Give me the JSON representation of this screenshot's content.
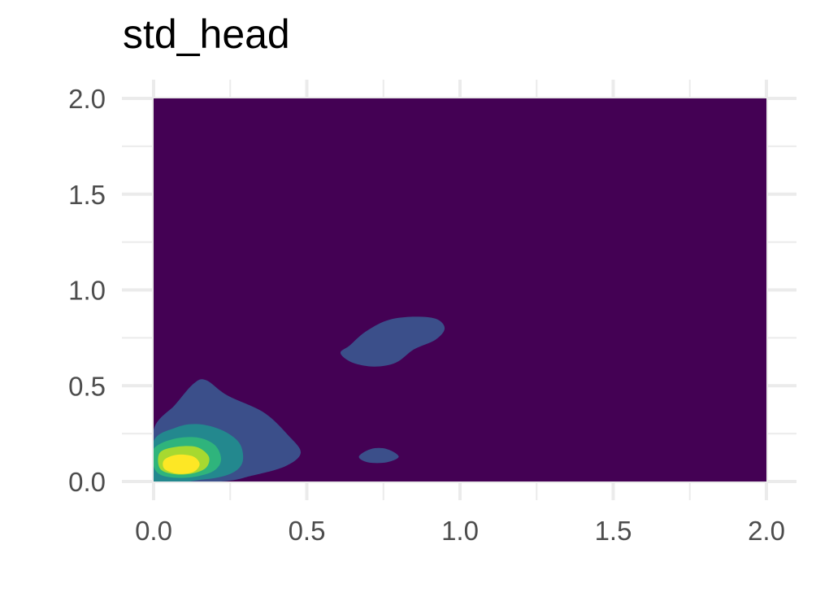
{
  "chart_data": {
    "type": "contour",
    "title": "std_head",
    "xlabel": "",
    "ylabel": "",
    "xlim": [
      0,
      2
    ],
    "ylim": [
      0,
      2
    ],
    "x_ticks": [
      "0.0",
      "0.5",
      "1.0",
      "1.5",
      "2.0"
    ],
    "y_ticks": [
      "0.0",
      "0.5",
      "1.0",
      "1.5",
      "2.0"
    ],
    "grid": true,
    "legend": "none",
    "density_peak": {
      "x": 0.09,
      "y": 0.09
    },
    "secondary_modes": [
      {
        "x": 0.75,
        "y": 0.74
      },
      {
        "x": 0.73,
        "y": 0.13
      }
    ],
    "contour_levels": [
      {
        "level": 1,
        "color": "#3b4f8a",
        "regions": [
          [
            [
              0.0,
              0.27
            ],
            [
              0.07,
              0.4
            ],
            [
              0.13,
              0.51
            ],
            [
              0.17,
              0.53
            ],
            [
              0.24,
              0.45
            ],
            [
              0.36,
              0.36
            ],
            [
              0.44,
              0.24
            ],
            [
              0.48,
              0.15
            ],
            [
              0.43,
              0.08
            ],
            [
              0.32,
              0.03
            ],
            [
              0.22,
              0.0
            ],
            [
              0.0,
              0.0
            ]
          ],
          [
            [
              0.64,
              0.71
            ],
            [
              0.69,
              0.78
            ],
            [
              0.76,
              0.84
            ],
            [
              0.84,
              0.86
            ],
            [
              0.92,
              0.85
            ],
            [
              0.95,
              0.8
            ],
            [
              0.92,
              0.74
            ],
            [
              0.85,
              0.69
            ],
            [
              0.79,
              0.62
            ],
            [
              0.72,
              0.6
            ],
            [
              0.65,
              0.62
            ],
            [
              0.61,
              0.67
            ]
          ],
          [
            [
              0.67,
              0.13
            ],
            [
              0.71,
              0.17
            ],
            [
              0.76,
              0.17
            ],
            [
              0.8,
              0.13
            ],
            [
              0.76,
              0.1
            ],
            [
              0.7,
              0.1
            ]
          ]
        ]
      },
      {
        "level": 2,
        "color": "#23888e",
        "regions": [
          [
            [
              0.0,
              0.21
            ],
            [
              0.07,
              0.28
            ],
            [
              0.14,
              0.3
            ],
            [
              0.22,
              0.27
            ],
            [
              0.28,
              0.2
            ],
            [
              0.29,
              0.1
            ],
            [
              0.25,
              0.04
            ],
            [
              0.16,
              0.01
            ],
            [
              0.0,
              0.0
            ]
          ]
        ]
      },
      {
        "level": 3,
        "color": "#2fb47c",
        "regions": [
          [
            [
              0.0,
              0.17
            ],
            [
              0.06,
              0.22
            ],
            [
              0.14,
              0.23
            ],
            [
              0.2,
              0.19
            ],
            [
              0.22,
              0.11
            ],
            [
              0.19,
              0.05
            ],
            [
              0.11,
              0.02
            ],
            [
              0.03,
              0.03
            ],
            [
              0.0,
              0.08
            ]
          ]
        ]
      },
      {
        "level": 4,
        "color": "#a7d930",
        "regions": [
          [
            [
              0.02,
              0.15
            ],
            [
              0.07,
              0.18
            ],
            [
              0.14,
              0.18
            ],
            [
              0.18,
              0.13
            ],
            [
              0.17,
              0.07
            ],
            [
              0.12,
              0.04
            ],
            [
              0.06,
              0.04
            ],
            [
              0.02,
              0.07
            ]
          ]
        ]
      },
      {
        "level": 5,
        "color": "#fde725",
        "regions": [
          [
            [
              0.04,
              0.12
            ],
            [
              0.08,
              0.14
            ],
            [
              0.13,
              0.13
            ],
            [
              0.15,
              0.09
            ],
            [
              0.13,
              0.05
            ],
            [
              0.08,
              0.04
            ],
            [
              0.04,
              0.06
            ],
            [
              0.03,
              0.09
            ]
          ]
        ]
      }
    ],
    "colors": {
      "background_fill": "#440154",
      "gridline": "#ebebeb"
    }
  }
}
